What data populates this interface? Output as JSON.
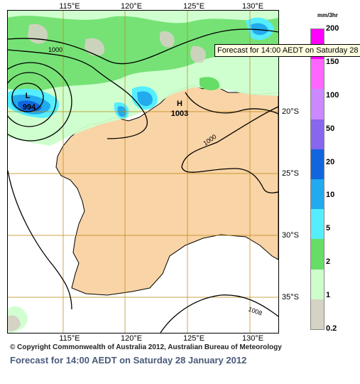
{
  "tooltip": "Forecast for 14:00 AEDT  on Saturday 28",
  "copyright": "© Copyright Commonwealth of Australia 2012, Australian Bureau of Meteorology",
  "caption": "Forecast for 14:00 AEDT on Saturday 28 January 2012",
  "legend": {
    "unit": "mm/3hr",
    "values": [
      "200",
      "150",
      "100",
      "50",
      "20",
      "10",
      "5",
      "2",
      "1",
      "0.2"
    ],
    "colors": [
      "#ff00ff",
      "#ff66ff",
      "#cc88ff",
      "#8866ee",
      "#1166dd",
      "#22aaee",
      "#55eeff",
      "#66dd66",
      "#ccffcc",
      "#d6d2c4"
    ]
  },
  "lon_labels": [
    "115°E",
    "120°E",
    "125°E",
    "130°E"
  ],
  "lat_labels": [
    "20°S",
    "25°S",
    "30°S",
    "35°S"
  ],
  "pressure_systems": [
    {
      "symbol": "L",
      "value": "994"
    },
    {
      "symbol": "H",
      "value": "1003"
    }
  ],
  "isobar_labels": [
    "1000",
    "1000",
    "1008"
  ],
  "colors": {
    "land": "#f9d4a6",
    "ocean": "#ffffff",
    "coast": "#000000"
  }
}
